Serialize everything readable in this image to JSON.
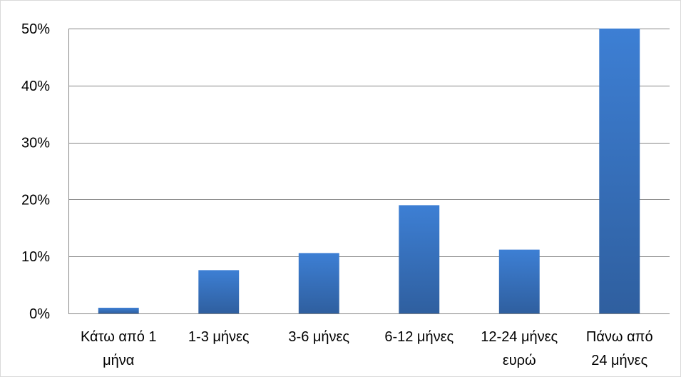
{
  "chart_data": {
    "type": "bar",
    "title": "",
    "xlabel": "",
    "ylabel": "",
    "categories": [
      [
        "Κάτω από 1",
        "μήνα"
      ],
      [
        "1-3 μήνες"
      ],
      [
        "3-6 μήνες"
      ],
      [
        "6-12 μήνες"
      ],
      [
        "12-24 μήνες",
        "ευρώ"
      ],
      [
        "Πάνω από",
        "24 μήνες"
      ]
    ],
    "values": [
      1,
      7.6,
      10.6,
      19,
      11.2,
      50
    ],
    "ylim": [
      0,
      50
    ],
    "yticks": [
      0,
      10,
      20,
      30,
      40,
      50
    ],
    "ytick_labels": [
      "0%",
      "10%",
      "20%",
      "30%",
      "40%",
      "50%"
    ],
    "grid": true,
    "legend": "none",
    "colors": {
      "bar_top": "#3d7fd4",
      "bar_bottom": "#2f5f9f",
      "grid": "#868686",
      "axis": "#868686"
    }
  }
}
